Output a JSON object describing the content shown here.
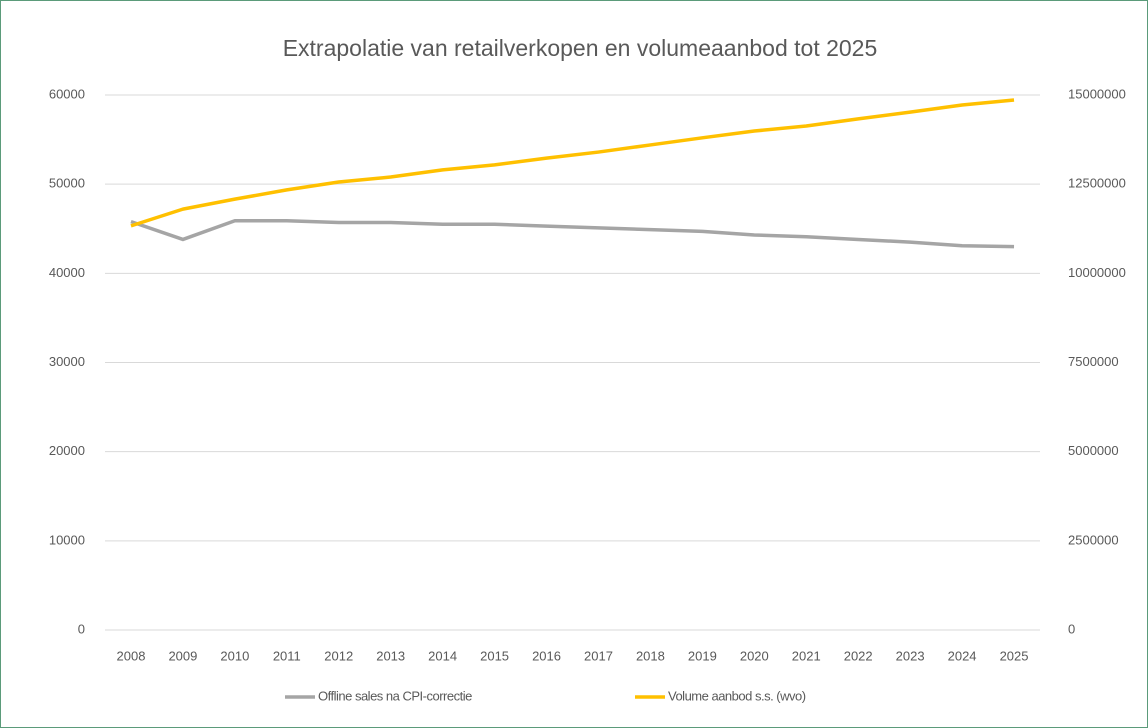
{
  "chart_data": {
    "type": "line",
    "title": "Extrapolatie van retailverkopen en volumeaanbod tot 2025",
    "categories": [
      "2008",
      "2009",
      "2010",
      "2011",
      "2012",
      "2013",
      "2014",
      "2015",
      "2016",
      "2017",
      "2018",
      "2019",
      "2020",
      "2021",
      "2022",
      "2023",
      "2024",
      "2025"
    ],
    "series": [
      {
        "name": "Offline sales na CPI-correctie",
        "color": "#a5a5a5",
        "values": [
          45800,
          43800,
          45900,
          45900,
          45700,
          45700,
          45500,
          45500,
          45300,
          45100,
          44900,
          44700,
          44300,
          44100,
          43800,
          43500,
          43100,
          43000
        ]
      },
      {
        "name": "Volume aanbod s.s. (wvo)",
        "color": "#ffc000",
        "axis": "y2",
        "values": [
          11330000,
          11800000,
          12080000,
          12340000,
          12560000,
          12700000,
          12900000,
          13040000,
          13230000,
          13400000,
          13600000,
          13800000,
          13990000,
          14130000,
          14330000,
          14520000,
          14720000,
          14860000
        ]
      }
    ],
    "ylim": [
      0,
      60000
    ],
    "yticks": [
      0,
      10000,
      20000,
      30000,
      40000,
      50000,
      60000
    ],
    "y2lim": [
      0,
      15000000
    ],
    "y2ticks": [
      0,
      2500000,
      5000000,
      7500000,
      10000000,
      12500000,
      15000000
    ],
    "grid": true,
    "legend": "bottom"
  }
}
